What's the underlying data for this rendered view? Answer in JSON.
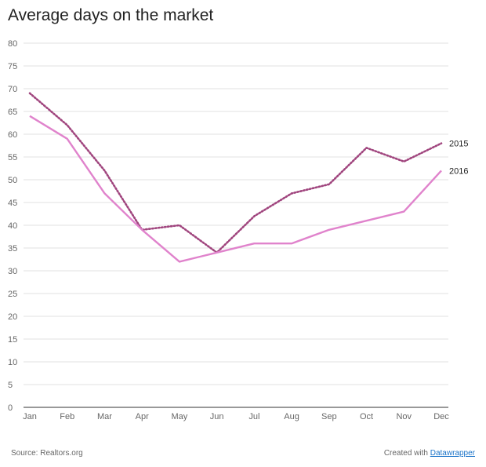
{
  "chart_data": {
    "type": "line",
    "title": "Average days on the market",
    "categories": [
      "Jan",
      "Feb",
      "Mar",
      "Apr",
      "May",
      "Jun",
      "Jul",
      "Aug",
      "Sep",
      "Oct",
      "Nov",
      "Dec"
    ],
    "series": [
      {
        "name": "2015",
        "values": [
          69,
          62,
          52,
          39,
          40,
          34,
          42,
          47,
          49,
          57,
          54,
          58
        ],
        "color": "#a0457e",
        "style": "dotted"
      },
      {
        "name": "2016",
        "values": [
          64,
          59,
          47,
          39,
          32,
          34,
          36,
          36,
          39,
          41,
          43,
          52
        ],
        "color": "#e083cc",
        "style": "solid"
      }
    ],
    "ylim": [
      0,
      80
    ],
    "yticks": [
      0,
      5,
      10,
      15,
      20,
      25,
      30,
      35,
      40,
      45,
      50,
      55,
      60,
      65,
      70,
      75,
      80
    ],
    "grid": true,
    "legend": "inline-right"
  },
  "footer": {
    "source": "Source: Realtors.org",
    "credit_prefix": "Created with",
    "credit_link": "Datawrapper"
  }
}
